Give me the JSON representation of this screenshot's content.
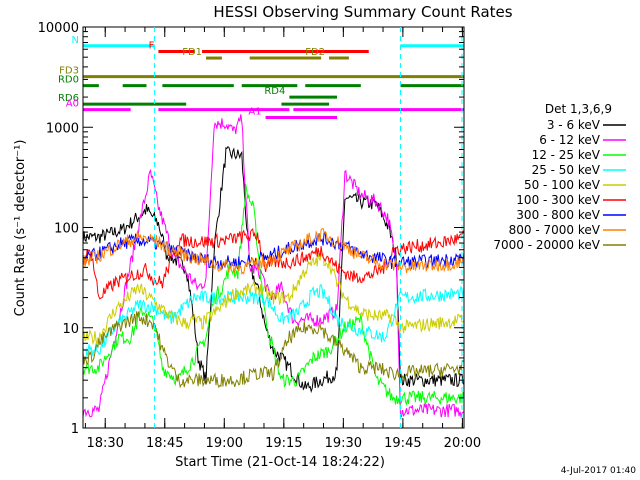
{
  "chart_data": {
    "type": "line",
    "title": "HESSI Observing Summary Count Rates",
    "xlabel": "Start Time (21-Oct-14 18:24:22)",
    "ylabel": "Count Rate (s⁻¹ detector⁻¹)",
    "footer": "4-Jul-2017 01:40",
    "y_scale": "log",
    "ylim": [
      1,
      10000
    ],
    "xlim_minutes": [
      0,
      96
    ],
    "x_ticks": [
      {
        "label": "18:30",
        "minute": 5.6
      },
      {
        "label": "18:45",
        "minute": 20.6
      },
      {
        "label": "19:00",
        "minute": 35.6
      },
      {
        "label": "19:15",
        "minute": 50.6
      },
      {
        "label": "19:30",
        "minute": 65.6
      },
      {
        "label": "19:45",
        "minute": 80.6
      },
      {
        "label": "20:00",
        "minute": 95.6
      }
    ],
    "y_ticks": [
      {
        "label": "1",
        "value": 1
      },
      {
        "label": "10",
        "value": 10
      },
      {
        "label": "100",
        "value": 100
      },
      {
        "label": "1000",
        "value": 1000
      },
      {
        "label": "10000",
        "value": 10000
      }
    ],
    "legend_title": "Det 1,3,6,9",
    "legend_position": "right",
    "series": [
      {
        "name": "3 - 6 keV",
        "color": "#000000",
        "points": [
          [
            0,
            80
          ],
          [
            4,
            80
          ],
          [
            10,
            95
          ],
          [
            16,
            150
          ],
          [
            19,
            110
          ],
          [
            21,
            55
          ],
          [
            26,
            40
          ],
          [
            28,
            12
          ],
          [
            29,
            5
          ],
          [
            31,
            3
          ],
          [
            33,
            60
          ],
          [
            36,
            550
          ],
          [
            40,
            520
          ],
          [
            42,
            40
          ],
          [
            44,
            25
          ],
          [
            46,
            10
          ],
          [
            48,
            6
          ],
          [
            50,
            5
          ],
          [
            52,
            4
          ],
          [
            56,
            2.5
          ],
          [
            60,
            3
          ],
          [
            64,
            3.5
          ],
          [
            66,
            200
          ],
          [
            70,
            180
          ],
          [
            74,
            170
          ],
          [
            77,
            100
          ],
          [
            79,
            50
          ],
          [
            80,
            3
          ],
          [
            96,
            3
          ]
        ]
      },
      {
        "name": "6 - 12 keV",
        "color": "#ff00ff",
        "points": [
          [
            0,
            1.5
          ],
          [
            4,
            1.5
          ],
          [
            17,
            350
          ],
          [
            19,
            160
          ],
          [
            23,
            50
          ],
          [
            29,
            25
          ],
          [
            31,
            30
          ],
          [
            33,
            1100
          ],
          [
            36,
            1100
          ],
          [
            38,
            900
          ],
          [
            40,
            1200
          ],
          [
            42,
            40
          ],
          [
            45,
            35
          ],
          [
            47,
            20
          ],
          [
            50,
            25
          ],
          [
            53,
            12
          ],
          [
            56,
            12
          ],
          [
            60,
            12
          ],
          [
            64,
            15
          ],
          [
            66,
            350
          ],
          [
            70,
            210
          ],
          [
            74,
            180
          ],
          [
            77,
            120
          ],
          [
            79,
            40
          ],
          [
            80,
            1.5
          ],
          [
            96,
            1.5
          ]
        ]
      },
      {
        "name": "12 - 25 keV",
        "color": "#00ff00",
        "points": [
          [
            0,
            4
          ],
          [
            4,
            4
          ],
          [
            9,
            8
          ],
          [
            12,
            8
          ],
          [
            15,
            15
          ],
          [
            18,
            11
          ],
          [
            20,
            4
          ],
          [
            24,
            3
          ],
          [
            28,
            5
          ],
          [
            31,
            8
          ],
          [
            33,
            20
          ],
          [
            35,
            25
          ],
          [
            37,
            40
          ],
          [
            39,
            35
          ],
          [
            41,
            240
          ],
          [
            43,
            150
          ],
          [
            46,
            12
          ],
          [
            50,
            3
          ],
          [
            54,
            3
          ],
          [
            58,
            5
          ],
          [
            62,
            6
          ],
          [
            66,
            10
          ],
          [
            70,
            12
          ],
          [
            74,
            3
          ],
          [
            78,
            2
          ],
          [
            80,
            2
          ],
          [
            96,
            2
          ]
        ]
      },
      {
        "name": "25 - 50 keV",
        "color": "#00ffff",
        "points": [
          [
            0,
            6
          ],
          [
            4,
            6
          ],
          [
            8,
            10
          ],
          [
            14,
            17
          ],
          [
            18,
            16
          ],
          [
            22,
            12
          ],
          [
            28,
            20
          ],
          [
            36,
            20
          ],
          [
            42,
            20
          ],
          [
            46,
            20
          ],
          [
            50,
            12
          ],
          [
            54,
            14
          ],
          [
            58,
            22
          ],
          [
            60,
            23
          ],
          [
            62,
            18
          ],
          [
            64,
            12
          ],
          [
            66,
            11
          ],
          [
            68,
            10
          ],
          [
            72,
            9
          ],
          [
            76,
            8
          ],
          [
            80,
            20
          ],
          [
            96,
            22
          ]
        ]
      },
      {
        "name": "50 - 100 keV",
        "color": "#cccc00",
        "points": [
          [
            0,
            8
          ],
          [
            4,
            8
          ],
          [
            8,
            15
          ],
          [
            14,
            25
          ],
          [
            18,
            18
          ],
          [
            22,
            13
          ],
          [
            26,
            11
          ],
          [
            28,
            12
          ],
          [
            30,
            11
          ],
          [
            34,
            15
          ],
          [
            38,
            22
          ],
          [
            44,
            25
          ],
          [
            48,
            20
          ],
          [
            52,
            20
          ],
          [
            56,
            38
          ],
          [
            60,
            50
          ],
          [
            62,
            45
          ],
          [
            64,
            28
          ],
          [
            66,
            20
          ],
          [
            70,
            14
          ],
          [
            74,
            13
          ],
          [
            78,
            13
          ],
          [
            80,
            10
          ],
          [
            96,
            12
          ]
        ]
      },
      {
        "name": "100 - 300 keV",
        "color": "#ff0000",
        "points": [
          [
            0,
            45
          ],
          [
            2,
            60
          ],
          [
            4,
            20
          ],
          [
            8,
            28
          ],
          [
            12,
            33
          ],
          [
            16,
            38
          ],
          [
            18,
            30
          ],
          [
            20,
            28
          ],
          [
            24,
            75
          ],
          [
            28,
            73
          ],
          [
            32,
            72
          ],
          [
            36,
            75
          ],
          [
            40,
            80
          ],
          [
            44,
            85
          ],
          [
            46,
            40
          ],
          [
            48,
            45
          ],
          [
            52,
            45
          ],
          [
            56,
            50
          ],
          [
            60,
            60
          ],
          [
            64,
            40
          ],
          [
            68,
            32
          ],
          [
            72,
            33
          ],
          [
            76,
            40
          ],
          [
            78,
            60
          ],
          [
            80,
            62
          ],
          [
            84,
            65
          ],
          [
            90,
            70
          ],
          [
            96,
            80
          ]
        ]
      },
      {
        "name": "300 - 800 keV",
        "color": "#0000ff",
        "points": [
          [
            0,
            48
          ],
          [
            4,
            55
          ],
          [
            10,
            70
          ],
          [
            14,
            75
          ],
          [
            18,
            70
          ],
          [
            22,
            60
          ],
          [
            28,
            50
          ],
          [
            34,
            45
          ],
          [
            40,
            45
          ],
          [
            46,
            50
          ],
          [
            52,
            62
          ],
          [
            58,
            75
          ],
          [
            60,
            78
          ],
          [
            62,
            75
          ],
          [
            66,
            65
          ],
          [
            70,
            55
          ],
          [
            74,
            50
          ],
          [
            78,
            45
          ],
          [
            82,
            45
          ],
          [
            88,
            46
          ],
          [
            96,
            50
          ]
        ]
      },
      {
        "name": "800 - 7000 keV",
        "color": "#ff8000",
        "points": [
          [
            0,
            45
          ],
          [
            4,
            52
          ],
          [
            10,
            70
          ],
          [
            14,
            80
          ],
          [
            18,
            75
          ],
          [
            22,
            60
          ],
          [
            28,
            50
          ],
          [
            34,
            42
          ],
          [
            40,
            40
          ],
          [
            46,
            45
          ],
          [
            52,
            60
          ],
          [
            58,
            80
          ],
          [
            60,
            85
          ],
          [
            62,
            80
          ],
          [
            66,
            65
          ],
          [
            70,
            52
          ],
          [
            74,
            45
          ],
          [
            78,
            42
          ],
          [
            82,
            40
          ],
          [
            88,
            42
          ],
          [
            96,
            45
          ]
        ]
      },
      {
        "name": "7000 - 20000 keV",
        "color": "#808000",
        "points": [
          [
            0,
            5
          ],
          [
            2,
            5
          ],
          [
            4,
            7
          ],
          [
            8,
            10
          ],
          [
            14,
            13
          ],
          [
            18,
            11
          ],
          [
            20,
            6
          ],
          [
            24,
            3
          ],
          [
            28,
            3
          ],
          [
            30,
            3
          ],
          [
            32,
            3
          ],
          [
            34,
            3
          ],
          [
            38,
            3
          ],
          [
            44,
            3.5
          ],
          [
            48,
            3.5
          ],
          [
            52,
            8
          ],
          [
            56,
            10
          ],
          [
            60,
            10
          ],
          [
            62,
            8
          ],
          [
            66,
            6
          ],
          [
            70,
            4
          ],
          [
            74,
            4
          ],
          [
            78,
            3.5
          ],
          [
            80,
            3.5
          ],
          [
            96,
            4
          ]
        ]
      }
    ],
    "flags": [
      {
        "label": "N",
        "color": "#00ffff",
        "value": 6500,
        "segments": [
          [
            0,
            18
          ],
          [
            80,
            96
          ]
        ]
      },
      {
        "label": "F",
        "color": "#ff0000",
        "value": 5700,
        "segments": [
          [
            19,
            28
          ],
          [
            30,
            72
          ]
        ]
      },
      {
        "label": "FD1",
        "color": "#808000",
        "value": 4900,
        "segments": [
          [
            31,
            35
          ],
          [
            42,
            60
          ]
        ]
      },
      {
        "label": "FD2",
        "color": "#808000",
        "value": 4900,
        "segments": [
          [
            62,
            67
          ]
        ]
      },
      {
        "label": "FD3",
        "color": "#808000",
        "value": 3200,
        "segments": [
          [
            0,
            96
          ]
        ]
      },
      {
        "label": "RD0",
        "color": "#008000",
        "value": 2600,
        "segments": [
          [
            0,
            4
          ],
          [
            10,
            16
          ],
          [
            20,
            38
          ],
          [
            40,
            54
          ],
          [
            56,
            70
          ],
          [
            80,
            96
          ]
        ]
      },
      {
        "label": "RD4",
        "color": "#008000",
        "value": 2000,
        "segments": [
          [
            52,
            64
          ]
        ]
      },
      {
        "label": "RD6",
        "color": "#008000",
        "value": 1700,
        "segments": [
          [
            0,
            26
          ],
          [
            50,
            62
          ]
        ]
      },
      {
        "label": "A0",
        "color": "#ff00ff",
        "value": 1500,
        "segments": [
          [
            0,
            12
          ],
          [
            19,
            52
          ],
          [
            53,
            96
          ]
        ]
      },
      {
        "label": "A1",
        "color": "#ff00ff",
        "value": 1250,
        "segments": [
          [
            46,
            64
          ]
        ]
      }
    ]
  }
}
